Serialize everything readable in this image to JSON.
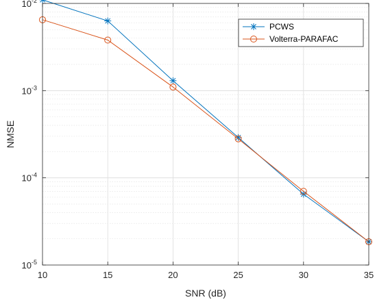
{
  "chart_data": {
    "type": "line",
    "xlabel": "SNR (dB)",
    "ylabel": "NMSE",
    "xlim": [
      10,
      35
    ],
    "ylim": [
      1e-05,
      0.01
    ],
    "yscale": "log",
    "grid": true,
    "legend_position": "top-right",
    "x_ticks": [
      10,
      15,
      20,
      25,
      30,
      35
    ],
    "x_tick_labels": [
      "10",
      "15",
      "20",
      "25",
      "30",
      "35"
    ],
    "y_ticks": [
      {
        "value": 0.01,
        "base": "10",
        "exp": "-2"
      },
      {
        "value": 0.001,
        "base": "10",
        "exp": "-3"
      },
      {
        "value": 0.0001,
        "base": "10",
        "exp": "-4"
      },
      {
        "value": 1e-05,
        "base": "10",
        "exp": "-5"
      }
    ],
    "x": [
      10,
      15,
      20,
      25,
      30,
      35
    ],
    "series": [
      {
        "name": "PCWS",
        "marker": "asterisk",
        "color": "#0072BD",
        "values": [
          0.011,
          0.0063,
          0.0013,
          0.00029,
          6.5e-05,
          1.85e-05
        ]
      },
      {
        "name": "Volterra-PARAFAC",
        "marker": "circle",
        "color": "#D95319",
        "values": [
          0.0065,
          0.0038,
          0.0011,
          0.00028,
          7e-05,
          1.85e-05
        ]
      }
    ]
  }
}
